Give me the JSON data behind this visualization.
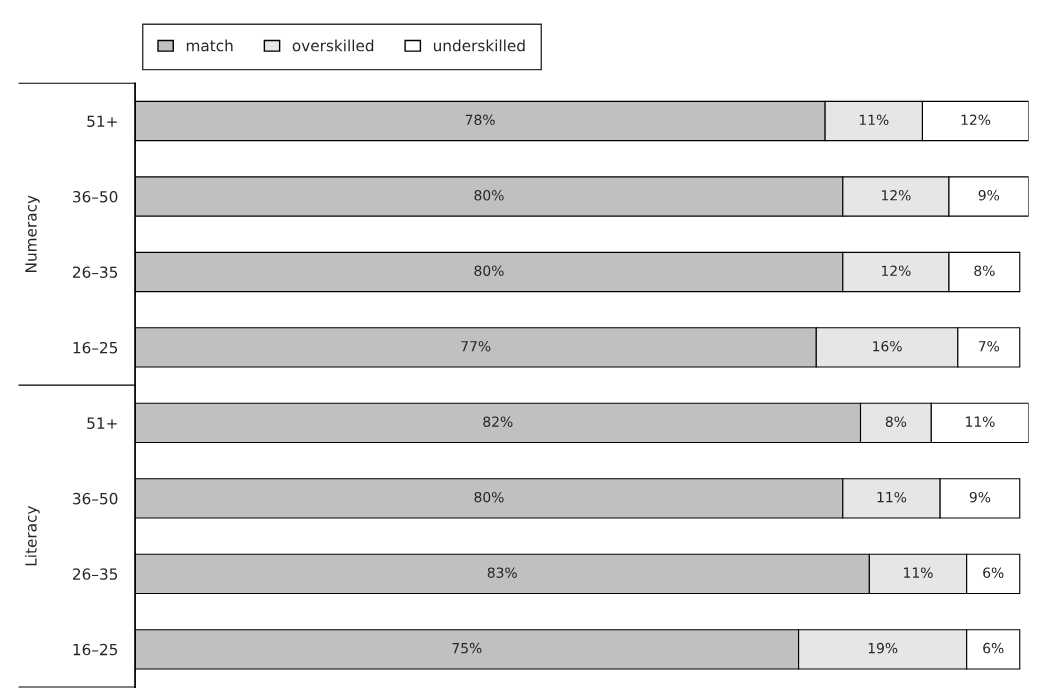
{
  "chart_data": {
    "type": "bar",
    "orientation": "horizontal",
    "stacked": true,
    "legend": "top left",
    "grid": false,
    "tick_labels": "y",
    "categories": [
      "51+",
      "36–50",
      "26–35",
      "16–25",
      "51+",
      "36–50",
      "26–35",
      "16–25"
    ],
    "annotations": [
      "Numeracy",
      "Literacy"
    ],
    "series": [
      {
        "name": "match",
        "color": "#c0c0c0",
        "values": [
          78,
          80,
          80,
          77,
          82,
          80,
          83,
          75
        ],
        "value_labels": [
          "78%",
          "80%",
          "80%",
          "77%",
          "82%",
          "80%",
          "83%",
          "75%"
        ]
      },
      {
        "name": "overskilled",
        "color": "#e6e6e6",
        "values": [
          11,
          12,
          12,
          16,
          8,
          11,
          11,
          19
        ],
        "value_labels": [
          "11%",
          "12%",
          "12%",
          "16%",
          "8%",
          "11%",
          "11%",
          "19%"
        ]
      },
      {
        "name": "underskilled",
        "color": "#ffffff",
        "values": [
          12,
          9,
          8,
          7,
          11,
          9,
          6,
          6
        ],
        "value_labels": [
          "12%",
          "9%",
          "8%",
          "7%",
          "11%",
          "9%",
          "6%",
          "6%"
        ]
      }
    ]
  }
}
